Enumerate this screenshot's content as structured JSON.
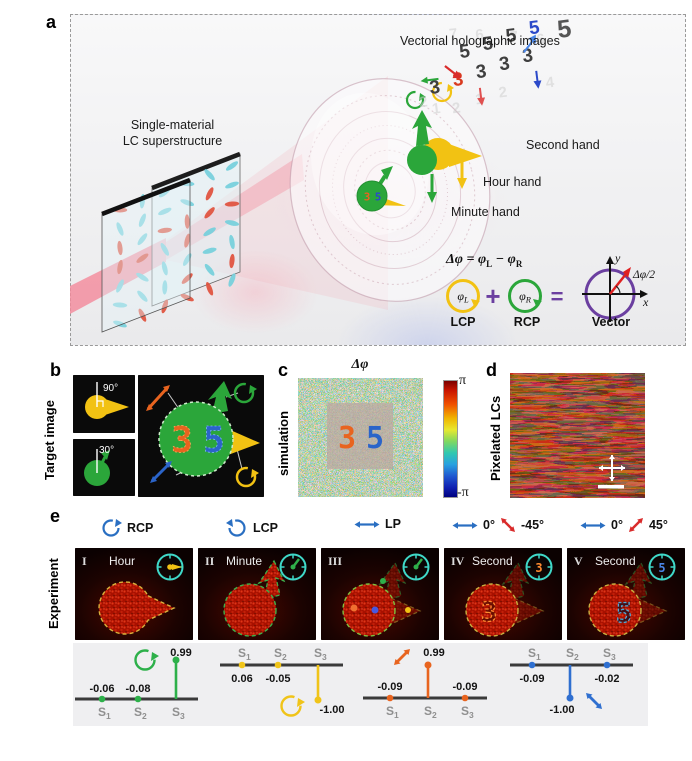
{
  "colors": {
    "green": "#2BA63A",
    "yellow": "#F2C213",
    "orange": "#E8641F",
    "blue": "#2B64C9",
    "cyan_clock": "#3FD8C8",
    "laser_pink": "#F4889A",
    "purple": "#6B3FA0",
    "header_blue": "#2A6FC2",
    "header_red": "#D92B2B"
  },
  "a": {
    "label": "a",
    "title": "Vectorial holographic images",
    "material_line1": "Single-material",
    "material_line2": "LC superstructure",
    "second_hand": "Second hand",
    "hour_hand": "Hour hand",
    "minute_hand": "Minute hand",
    "formula": {
      "d": "Δφ",
      "eq": " = ",
      "p1": "φ",
      "s1": "L",
      "minus": " − ",
      "p2": "φ",
      "s2": "R"
    },
    "phiL": {
      "base": "φ",
      "sub": "L"
    },
    "phiR": {
      "base": "φ",
      "sub": "R"
    },
    "plus": "+",
    "equals": "=",
    "lcp": "LCP",
    "rcp": "RCP",
    "vector": "Vector",
    "axis_x": "x",
    "axis_y": "y",
    "half": "Δφ/2",
    "digit3": "3",
    "digit5": "5"
  },
  "b": {
    "label": "b",
    "side": "Target image",
    "angle_top": "90°",
    "angle_bottom": "30°",
    "digit3": "3",
    "digit5": "5"
  },
  "c": {
    "label": "c",
    "side": "simulation",
    "top": "Δφ",
    "cb_max": "π",
    "cb_min": "-π",
    "digit3": "3",
    "digit5": "5"
  },
  "d": {
    "label": "d",
    "side": "Pixelated LCs"
  },
  "e": {
    "label": "e",
    "side": "Experiment",
    "headers": [
      {
        "label": "RCP"
      },
      {
        "label": "LCP"
      },
      {
        "label": "LP"
      },
      {
        "deg0": "0°",
        "deg": "-45°"
      },
      {
        "deg0": "0°",
        "deg": "45°"
      }
    ],
    "images": [
      {
        "numeral": "I",
        "title": "Hour"
      },
      {
        "numeral": "II",
        "title": "Minute"
      },
      {
        "numeral": "III",
        "title": ""
      },
      {
        "numeral": "IV",
        "title": "Second",
        "digit": "3"
      },
      {
        "numeral": "V",
        "title": "Second",
        "digit": "5"
      }
    ],
    "axis": {
      "base": "S",
      "sub1": "1",
      "sub2": "2",
      "sub3": "3"
    },
    "stokes": [
      {
        "s1": "-0.06",
        "s2": "-0.08",
        "s3": "0.99"
      },
      {
        "s1": "0.06",
        "s2": "-0.05",
        "s3": "-1.00"
      },
      {
        "s1": "-0.09",
        "s2": "0.99",
        "s3": "-0.09"
      },
      {
        "s1": "-0.09",
        "s2": "-1.00",
        "s3": "-0.02"
      }
    ]
  },
  "chart_data": [
    {
      "type": "stem",
      "categories": [
        "S1",
        "S2",
        "S3"
      ],
      "values": [
        -0.06,
        -0.08,
        0.99
      ],
      "ylim": [
        -1,
        1
      ],
      "color": "#2BA63A",
      "marker_icon": "circular-arrow-green"
    },
    {
      "type": "stem",
      "categories": [
        "S1",
        "S2",
        "S3"
      ],
      "values": [
        0.06,
        -0.05,
        -1.0
      ],
      "ylim": [
        -1,
        1
      ],
      "color": "#F2C213",
      "marker_icon": "circular-arrow-yellow"
    },
    {
      "type": "stem",
      "categories": [
        "S1",
        "S2",
        "S3"
      ],
      "values": [
        -0.09,
        0.99,
        -0.09
      ],
      "ylim": [
        -1,
        1
      ],
      "color": "#E8641F",
      "marker_icon": "diagonal-double-arrow-orange-45"
    },
    {
      "type": "stem",
      "categories": [
        "S1",
        "S2",
        "S3"
      ],
      "values": [
        -0.09,
        -1.0,
        -0.02
      ],
      "ylim": [
        -1,
        1
      ],
      "color": "#2F6FD0",
      "marker_icon": "diagonal-double-arrow-blue-minus45"
    }
  ]
}
